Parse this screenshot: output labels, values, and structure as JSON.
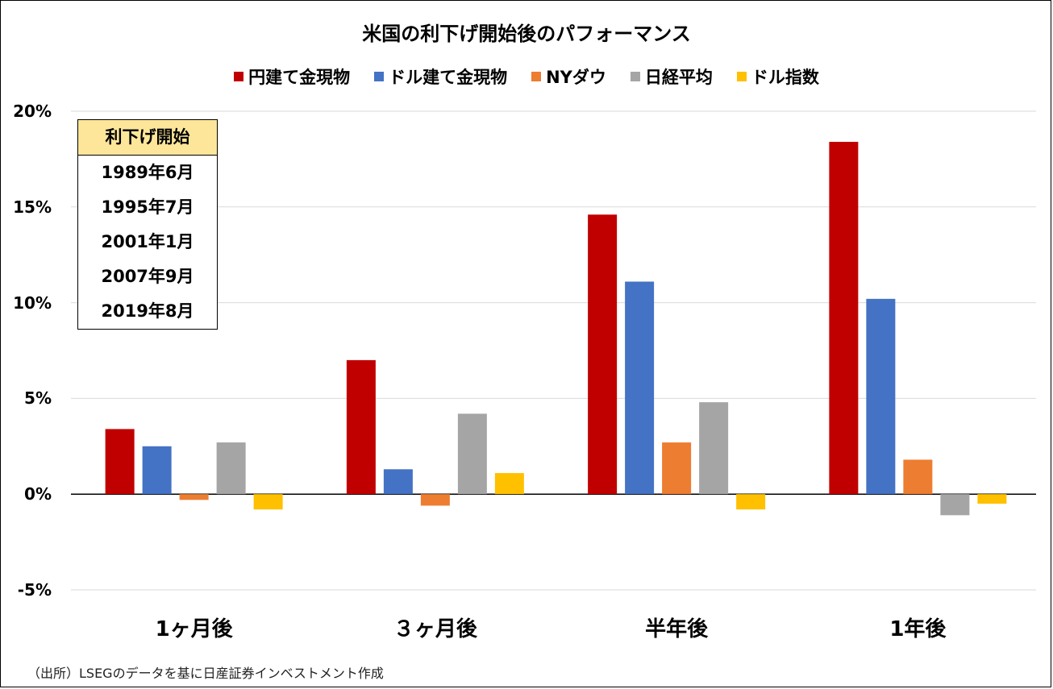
{
  "chart_data": {
    "type": "bar",
    "title": "米国の利下げ開始後のパフォーマンス",
    "categories": [
      "1ヶ月後",
      "３ヶ月後",
      "半年後",
      "1年後"
    ],
    "series": [
      {
        "name": "円建て金現物",
        "color": "#c00000",
        "values": [
          3.4,
          7.0,
          14.6,
          18.4
        ]
      },
      {
        "name": "ドル建て金現物",
        "color": "#4472c4",
        "values": [
          2.5,
          1.3,
          11.1,
          10.2
        ]
      },
      {
        "name": "NYダウ",
        "color": "#ed7d31",
        "values": [
          -0.3,
          -0.6,
          2.7,
          1.8
        ]
      },
      {
        "name": "日経平均",
        "color": "#a5a5a5",
        "values": [
          2.7,
          4.2,
          4.8,
          -1.1
        ]
      },
      {
        "name": "ドル指数",
        "color": "#ffc000",
        "values": [
          -0.8,
          1.1,
          -0.8,
          -0.5
        ]
      }
    ],
    "ylim": [
      -5,
      20
    ],
    "yticks": [
      "-5%",
      "0%",
      "5%",
      "10%",
      "15%",
      "20%"
    ],
    "ytick_values": [
      -5,
      0,
      5,
      10,
      15,
      20
    ],
    "grid": true,
    "legend_position": "top"
  },
  "info_box": {
    "header": "利下げ開始",
    "rows": [
      "1989年6月",
      "1995年7月",
      "2001年1月",
      "2007年9月",
      "2019年8月"
    ]
  },
  "source": "（出所）LSEGのデータを基に日産証券インベストメント作成"
}
